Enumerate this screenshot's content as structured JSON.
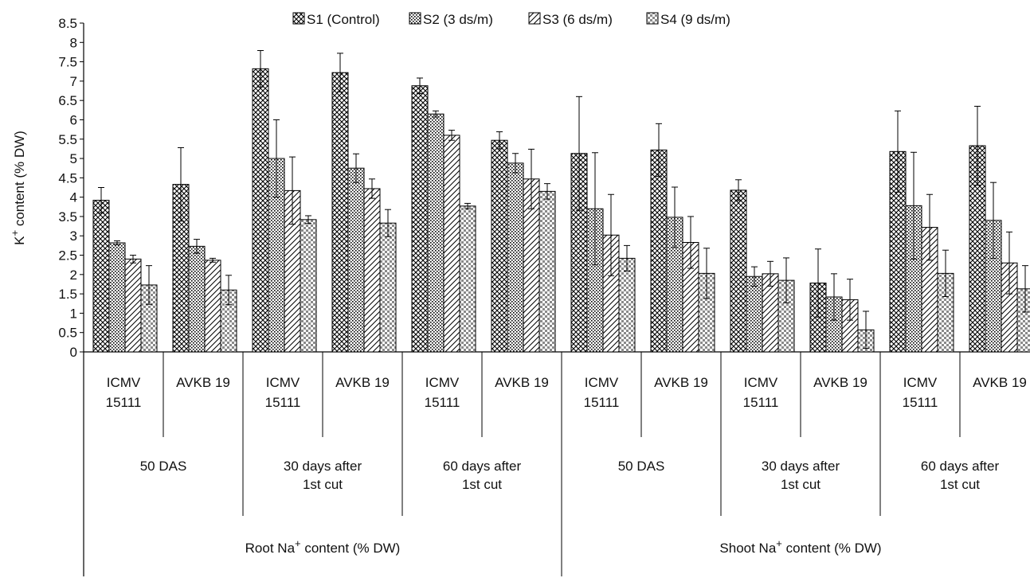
{
  "chart_data": {
    "type": "bar",
    "ylabel_main": "K",
    "ylabel_sup": "+",
    "ylabel_rest": " content (% DW)",
    "ylim": [
      0,
      8.5
    ],
    "yticks": [
      "0",
      "0.5",
      "1",
      "1.5",
      "2",
      "2.5",
      "3",
      "3.5",
      "4",
      "4.5",
      "5",
      "5.5",
      "6",
      "6.5",
      "7",
      "7.5",
      "8",
      "8.5"
    ],
    "legend": [
      "S1 (Control)",
      "S2 (3 ds/m)",
      "S3 (6 ds/m)",
      "S4 (9 ds/m)"
    ],
    "groups": [
      {
        "name_main": "Root Na",
        "name_sup": "+",
        "name_rest": " content (% DW)",
        "stages": [
          {
            "line1": "50 DAS",
            "line2": "",
            "varieties": [
              {
                "line1": "ICMV",
                "line2": "15111",
                "values": [
                  3.92,
                  2.82,
                  2.4,
                  1.73
                ],
                "errors": [
                  0.33,
                  0.05,
                  0.1,
                  0.5
                ]
              },
              {
                "line1": "AVKB 19",
                "line2": "",
                "values": [
                  4.33,
                  2.73,
                  2.37,
                  1.6
                ],
                "errors": [
                  0.95,
                  0.18,
                  0.05,
                  0.38
                ]
              }
            ]
          },
          {
            "line1": "30 days after",
            "line2": "1st cut",
            "varieties": [
              {
                "line1": "ICMV",
                "line2": "15111",
                "values": [
                  7.32,
                  5.0,
                  4.17,
                  3.42
                ],
                "errors": [
                  0.47,
                  1.0,
                  0.87,
                  0.1
                ]
              },
              {
                "line1": "AVKB 19",
                "line2": "",
                "values": [
                  7.22,
                  4.75,
                  4.22,
                  3.33
                ],
                "errors": [
                  0.5,
                  0.37,
                  0.25,
                  0.35
                ]
              }
            ]
          },
          {
            "line1": "60 days after",
            "line2": "1st cut",
            "varieties": [
              {
                "line1": "ICMV",
                "line2": "15111",
                "values": [
                  6.88,
                  6.15,
                  5.6,
                  3.77
                ],
                "errors": [
                  0.2,
                  0.08,
                  0.13,
                  0.07
                ]
              },
              {
                "line1": "AVKB 19",
                "line2": "",
                "values": [
                  5.47,
                  4.88,
                  4.47,
                  4.15
                ],
                "errors": [
                  0.22,
                  0.25,
                  0.77,
                  0.2
                ]
              }
            ]
          }
        ]
      },
      {
        "name_main": "Shoot Na",
        "name_sup": "+",
        "name_rest": " content (% DW)",
        "stages": [
          {
            "line1": "50 DAS",
            "line2": "",
            "varieties": [
              {
                "line1": "ICMV",
                "line2": "15111",
                "values": [
                  5.13,
                  3.7,
                  3.02,
                  2.42
                ],
                "errors": [
                  1.47,
                  1.45,
                  1.05,
                  0.33
                ]
              },
              {
                "line1": "AVKB 19",
                "line2": "",
                "values": [
                  5.22,
                  3.48,
                  2.83,
                  2.03
                ],
                "errors": [
                  0.68,
                  0.78,
                  0.67,
                  0.65
                ]
              }
            ]
          },
          {
            "line1": "30 days after",
            "line2": "1st cut",
            "varieties": [
              {
                "line1": "ICMV",
                "line2": "15111",
                "values": [
                  4.18,
                  1.95,
                  2.02,
                  1.85
                ],
                "errors": [
                  0.27,
                  0.25,
                  0.32,
                  0.58
                ]
              },
              {
                "line1": "AVKB 19",
                "line2": "",
                "values": [
                  1.78,
                  1.42,
                  1.35,
                  0.57
                ],
                "errors": [
                  0.88,
                  0.6,
                  0.53,
                  0.48
                ]
              }
            ]
          },
          {
            "line1": "60 days after",
            "line2": "1st cut",
            "varieties": [
              {
                "line1": "ICMV",
                "line2": "15111",
                "values": [
                  5.18,
                  3.78,
                  3.22,
                  2.03
                ],
                "errors": [
                  1.05,
                  1.38,
                  0.85,
                  0.6
                ]
              },
              {
                "line1": "AVKB 19",
                "line2": "",
                "values": [
                  5.33,
                  3.4,
                  2.3,
                  1.63
                ],
                "errors": [
                  1.02,
                  0.98,
                  0.8,
                  0.6
                ]
              }
            ]
          }
        ]
      }
    ]
  }
}
